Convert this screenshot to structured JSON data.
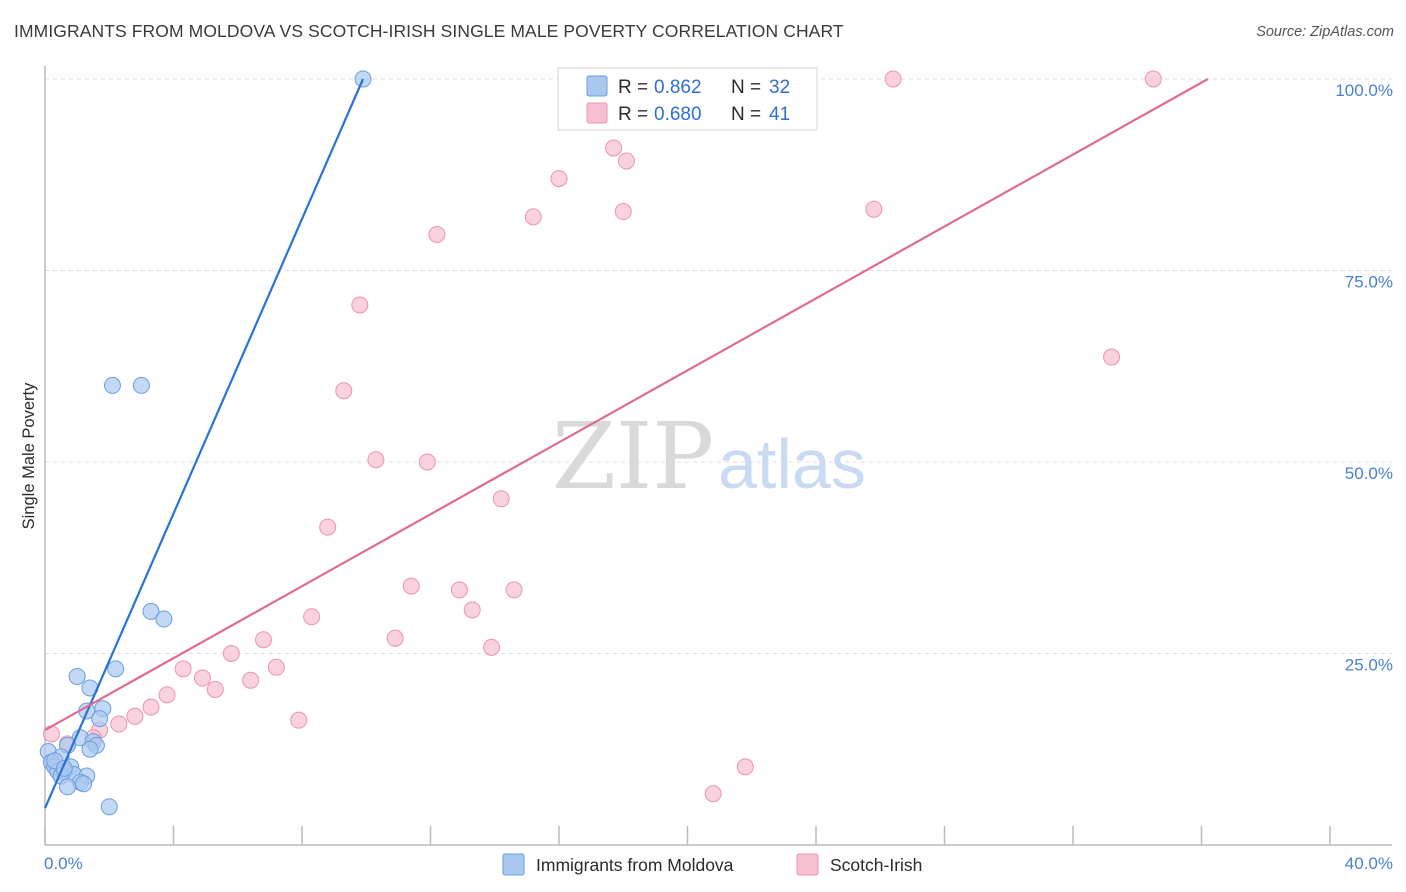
{
  "title": "IMMIGRANTS FROM MOLDOVA VS SCOTCH-IRISH SINGLE MALE POVERTY CORRELATION CHART",
  "source": "Source: ZipAtlas.com",
  "watermark": {
    "zip": "ZIP",
    "atlas": "atlas"
  },
  "colors": {
    "blue_fill": "#a9c8f0",
    "blue_stroke": "#6a9ee0",
    "blue_line": "#2a73d2",
    "pink_fill": "#f7bfd0",
    "pink_stroke": "#ec94b0",
    "pink_line": "#e06a94",
    "grid": "#dddddd",
    "axis": "#bbbbbb",
    "tick_text": "#4a7fd0"
  },
  "legend": {
    "rows": [
      {
        "r_label": "R =",
        "r_value": "0.862",
        "n_label": "N =",
        "n_value": "32",
        "color": "blue"
      },
      {
        "r_label": "R =",
        "r_value": "0.680",
        "n_label": "N =",
        "n_value": "41",
        "color": "pink"
      }
    ]
  },
  "chart_data": {
    "type": "scatter",
    "title": "IMMIGRANTS FROM MOLDOVA VS SCOTCH-IRISH SINGLE MALE POVERTY CORRELATION CHART",
    "xlabel": "",
    "ylabel": "Single Male Poverty",
    "xlim": [
      0,
      40
    ],
    "ylim": [
      0,
      100
    ],
    "x_tick_labels": [
      "0.0%",
      "40.0%"
    ],
    "y_ticks": [
      25,
      50,
      75,
      100
    ],
    "y_tick_labels": [
      "25.0%",
      "50.0%",
      "75.0%",
      "100.0%"
    ],
    "grid": true,
    "legend_position": "top-center",
    "series": [
      {
        "name": "Immigrants from Moldova",
        "color": "blue",
        "trend": {
          "x": [
            0.0,
            9.9
          ],
          "y": [
            4.8,
            100.0
          ]
        },
        "points": [
          {
            "x": 9.9,
            "y": 100.0
          },
          {
            "x": 2.1,
            "y": 60.0
          },
          {
            "x": 3.0,
            "y": 60.0
          },
          {
            "x": 3.3,
            "y": 30.5
          },
          {
            "x": 3.7,
            "y": 29.5
          },
          {
            "x": 2.2,
            "y": 23.0
          },
          {
            "x": 1.0,
            "y": 22.0
          },
          {
            "x": 1.4,
            "y": 20.5
          },
          {
            "x": 1.8,
            "y": 17.8
          },
          {
            "x": 1.3,
            "y": 17.5
          },
          {
            "x": 1.7,
            "y": 16.5
          },
          {
            "x": 1.1,
            "y": 14.0
          },
          {
            "x": 1.5,
            "y": 13.5
          },
          {
            "x": 0.7,
            "y": 13.0
          },
          {
            "x": 1.6,
            "y": 13.0
          },
          {
            "x": 1.4,
            "y": 12.5
          },
          {
            "x": 0.1,
            "y": 12.2
          },
          {
            "x": 0.5,
            "y": 11.5
          },
          {
            "x": 0.2,
            "y": 10.8
          },
          {
            "x": 0.3,
            "y": 10.2
          },
          {
            "x": 0.8,
            "y": 10.2
          },
          {
            "x": 0.4,
            "y": 9.6
          },
          {
            "x": 0.6,
            "y": 9.6
          },
          {
            "x": 0.9,
            "y": 9.2
          },
          {
            "x": 0.5,
            "y": 9.0
          },
          {
            "x": 1.3,
            "y": 9.0
          },
          {
            "x": 1.1,
            "y": 8.2
          },
          {
            "x": 1.2,
            "y": 8.0
          },
          {
            "x": 0.7,
            "y": 7.6
          },
          {
            "x": 2.0,
            "y": 5.0
          },
          {
            "x": 0.3,
            "y": 11.0
          },
          {
            "x": 0.6,
            "y": 10.0
          }
        ]
      },
      {
        "name": "Scotch-Irish",
        "color": "pink",
        "trend": {
          "x": [
            0.0,
            36.2
          ],
          "y": [
            15.0,
            100.0
          ]
        },
        "points": [
          {
            "x": 26.4,
            "y": 100.0
          },
          {
            "x": 34.5,
            "y": 100.0
          },
          {
            "x": 17.7,
            "y": 91.0
          },
          {
            "x": 18.1,
            "y": 89.3
          },
          {
            "x": 16.0,
            "y": 87.0
          },
          {
            "x": 18.0,
            "y": 82.7
          },
          {
            "x": 15.2,
            "y": 82.0
          },
          {
            "x": 25.8,
            "y": 83.0
          },
          {
            "x": 12.2,
            "y": 79.7
          },
          {
            "x": 9.8,
            "y": 70.5
          },
          {
            "x": 33.2,
            "y": 63.7
          },
          {
            "x": 9.3,
            "y": 59.3
          },
          {
            "x": 10.3,
            "y": 50.3
          },
          {
            "x": 11.9,
            "y": 50.0
          },
          {
            "x": 14.2,
            "y": 45.2
          },
          {
            "x": 8.8,
            "y": 41.5
          },
          {
            "x": 11.4,
            "y": 33.8
          },
          {
            "x": 12.9,
            "y": 33.3
          },
          {
            "x": 14.6,
            "y": 33.3
          },
          {
            "x": 13.3,
            "y": 30.7
          },
          {
            "x": 8.3,
            "y": 29.8
          },
          {
            "x": 6.8,
            "y": 26.8
          },
          {
            "x": 10.9,
            "y": 27.0
          },
          {
            "x": 13.9,
            "y": 25.8
          },
          {
            "x": 5.8,
            "y": 25.0
          },
          {
            "x": 4.3,
            "y": 23.0
          },
          {
            "x": 7.2,
            "y": 23.2
          },
          {
            "x": 4.9,
            "y": 21.8
          },
          {
            "x": 6.4,
            "y": 21.5
          },
          {
            "x": 5.3,
            "y": 20.3
          },
          {
            "x": 3.8,
            "y": 19.6
          },
          {
            "x": 3.3,
            "y": 18.0
          },
          {
            "x": 7.9,
            "y": 16.3
          },
          {
            "x": 2.8,
            "y": 16.8
          },
          {
            "x": 2.3,
            "y": 15.8
          },
          {
            "x": 1.7,
            "y": 15.0
          },
          {
            "x": 1.5,
            "y": 14.0
          },
          {
            "x": 21.8,
            "y": 10.2
          },
          {
            "x": 20.8,
            "y": 6.7
          },
          {
            "x": 0.2,
            "y": 14.5
          },
          {
            "x": 0.7,
            "y": 13.2
          }
        ]
      }
    ]
  }
}
